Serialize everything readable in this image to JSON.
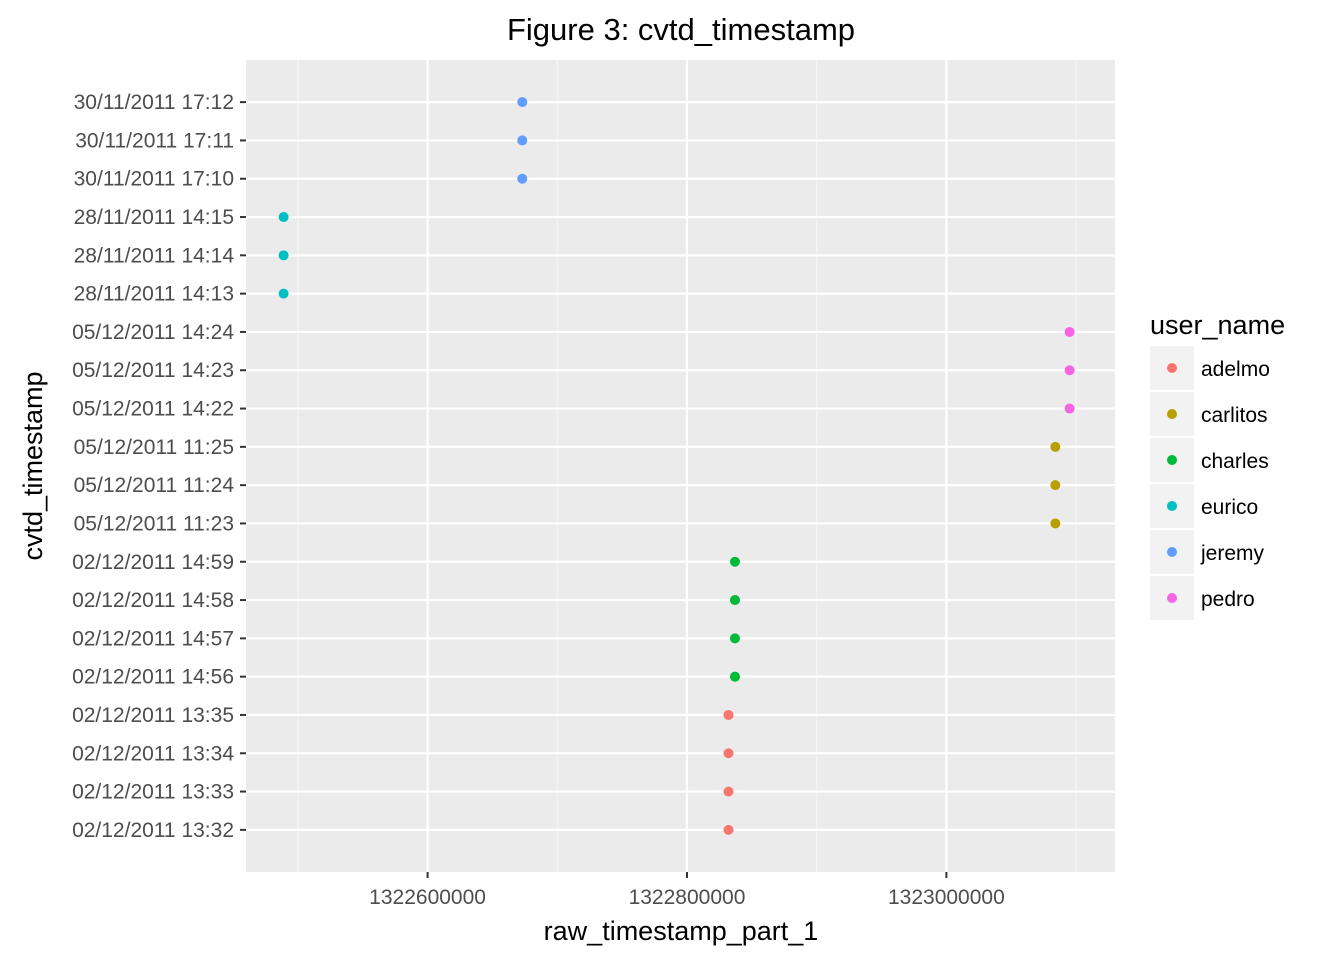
{
  "chart_data": {
    "type": "scatter",
    "title": "Figure 3: cvtd_timestamp",
    "xlabel": "raw_timestamp_part_1",
    "ylabel": "cvtd_timestamp",
    "xlim": [
      1322460000,
      1323130000
    ],
    "x_ticks": [
      1322600000,
      1322800000,
      1323000000
    ],
    "x_tick_labels": [
      "1322600000",
      "1322800000",
      "1323000000"
    ],
    "y_categories": [
      "02/12/2011 13:32",
      "02/12/2011 13:33",
      "02/12/2011 13:34",
      "02/12/2011 13:35",
      "02/12/2011 14:56",
      "02/12/2011 14:57",
      "02/12/2011 14:58",
      "02/12/2011 14:59",
      "05/12/2011 11:23",
      "05/12/2011 11:24",
      "05/12/2011 11:25",
      "05/12/2011 14:22",
      "05/12/2011 14:23",
      "05/12/2011 14:24",
      "28/11/2011 14:13",
      "28/11/2011 14:14",
      "28/11/2011 14:15",
      "30/11/2011 17:10",
      "30/11/2011 17:11",
      "30/11/2011 17:12"
    ],
    "grid": true,
    "legend_position": "right",
    "legend_title": "user_name",
    "series": [
      {
        "name": "adelmo",
        "color": "#F8766D",
        "points": [
          {
            "x": 1322832000,
            "y": "02/12/2011 13:32"
          },
          {
            "x": 1322832000,
            "y": "02/12/2011 13:33"
          },
          {
            "x": 1322832000,
            "y": "02/12/2011 13:34"
          },
          {
            "x": 1322832000,
            "y": "02/12/2011 13:35"
          }
        ]
      },
      {
        "name": "carlitos",
        "color": "#B79F00",
        "points": [
          {
            "x": 1323084000,
            "y": "05/12/2011 11:23"
          },
          {
            "x": 1323084000,
            "y": "05/12/2011 11:24"
          },
          {
            "x": 1323084000,
            "y": "05/12/2011 11:25"
          }
        ]
      },
      {
        "name": "charles",
        "color": "#00BA38",
        "points": [
          {
            "x": 1322837000,
            "y": "02/12/2011 14:56"
          },
          {
            "x": 1322837000,
            "y": "02/12/2011 14:57"
          },
          {
            "x": 1322837000,
            "y": "02/12/2011 14:58"
          },
          {
            "x": 1322837000,
            "y": "02/12/2011 14:59"
          }
        ]
      },
      {
        "name": "eurico",
        "color": "#00BFC4",
        "points": [
          {
            "x": 1322489000,
            "y": "28/11/2011 14:13"
          },
          {
            "x": 1322489000,
            "y": "28/11/2011 14:14"
          },
          {
            "x": 1322489000,
            "y": "28/11/2011 14:15"
          }
        ]
      },
      {
        "name": "jeremy",
        "color": "#619CFF",
        "points": [
          {
            "x": 1322673000,
            "y": "30/11/2011 17:10"
          },
          {
            "x": 1322673000,
            "y": "30/11/2011 17:11"
          },
          {
            "x": 1322673000,
            "y": "30/11/2011 17:12"
          }
        ]
      },
      {
        "name": "pedro",
        "color": "#F564E3",
        "points": [
          {
            "x": 1323095000,
            "y": "05/12/2011 14:22"
          },
          {
            "x": 1323095000,
            "y": "05/12/2011 14:23"
          },
          {
            "x": 1323095000,
            "y": "05/12/2011 14:24"
          }
        ]
      }
    ]
  }
}
